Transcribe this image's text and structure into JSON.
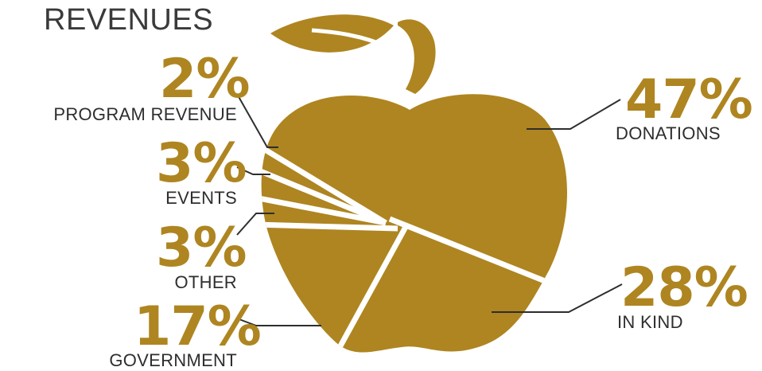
{
  "title": "REVENUES",
  "colors": {
    "accent": "#AE8520",
    "text": "#2e2e2e",
    "leader": "#2e2e2e"
  },
  "chart_data": {
    "type": "pie",
    "title": "REVENUES",
    "slices": [
      {
        "label": "DONATIONS",
        "value": 47,
        "value_label": "47%"
      },
      {
        "label": "IN KIND",
        "value": 28,
        "value_label": "28%"
      },
      {
        "label": "GOVERNMENT",
        "value": 17,
        "value_label": "17%"
      },
      {
        "label": "OTHER",
        "value": 3,
        "value_label": "3%"
      },
      {
        "label": "EVENTS",
        "value": 3,
        "value_label": "3%"
      },
      {
        "label": "PROGRAM REVENUE",
        "value": 2,
        "value_label": "2%"
      }
    ]
  }
}
